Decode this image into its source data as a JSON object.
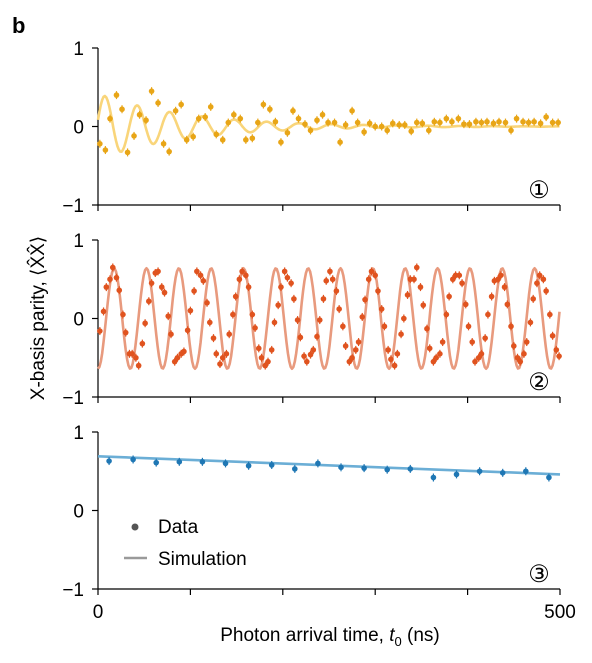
{
  "panel_label": "b",
  "shared_ylabel": "X-basis parity, ⟨X̂X̂⟩",
  "shared_xlabel": "Photon arrival time, t0 (ns)",
  "shared_xlabel_parts": {
    "main": "Photon arrival time, ",
    "var": "t",
    "sub": "0",
    "unit": " (ns)"
  },
  "x_tick_labels": [
    "0",
    "500"
  ],
  "legend": {
    "data_label": "Data",
    "simulation_label": "Simulation",
    "marker_color": "#555555",
    "line_color": "#9a9a9a"
  },
  "chart_data": [
    {
      "type": "line",
      "panel": "1",
      "badge": "①",
      "xlim": [
        0,
        500
      ],
      "ylim": [
        -1,
        1
      ],
      "y_ticks": [
        "1",
        "0",
        "−1"
      ],
      "data_color": "#E8A516",
      "sim_color": "#F9D57A",
      "series": [
        {
          "name": "Data",
          "kind": "points",
          "x": [
            2,
            8,
            13,
            20,
            26,
            32,
            39,
            45,
            52,
            58,
            65,
            71,
            77,
            84,
            90,
            96,
            103,
            109,
            116,
            122,
            128,
            135,
            141,
            147,
            154,
            160,
            167,
            173,
            179,
            186,
            192,
            198,
            205,
            211,
            217,
            224,
            230,
            237,
            243,
            249,
            256,
            262,
            268,
            275,
            281,
            288,
            294,
            300,
            307,
            313,
            319,
            326,
            332,
            339,
            345,
            351,
            358,
            364,
            370,
            377,
            383,
            390,
            396,
            402,
            409,
            415,
            421,
            428,
            434,
            441,
            447,
            453,
            460,
            466,
            472,
            479,
            485,
            492,
            498
          ],
          "y": [
            -0.22,
            -0.3,
            0.1,
            0.4,
            0.22,
            -0.33,
            -0.12,
            0.15,
            0.08,
            0.45,
            0.3,
            -0.22,
            -0.32,
            0.2,
            0.28,
            -0.17,
            -0.13,
            0.1,
            0.12,
            0.25,
            -0.1,
            -0.17,
            0.05,
            0.15,
            0.1,
            -0.17,
            -0.15,
            0.05,
            0.28,
            0.22,
            0.06,
            -0.2,
            -0.08,
            0.2,
            0.1,
            0.03,
            -0.05,
            0.08,
            0.15,
            0.05,
            0.05,
            -0.2,
            0.02,
            0.2,
            0.05,
            -0.07,
            0.04,
            0.0,
            0.0,
            -0.05,
            0.04,
            0.02,
            0.02,
            -0.06,
            0.05,
            0.04,
            -0.05,
            0.06,
            0.05,
            0.1,
            0.06,
            0.1,
            0.03,
            0.03,
            0.06,
            0.05,
            0.06,
            0.04,
            0.06,
            0.05,
            -0.05,
            0.1,
            0.06,
            0.05,
            0.06,
            0.04,
            0.12,
            0.05,
            0.05
          ]
        },
        {
          "name": "Simulation",
          "kind": "line",
          "model": {
            "amplitude": 0.42,
            "decay_ns": 95,
            "period_ns": 35,
            "phase": 0.2
          }
        }
      ]
    },
    {
      "type": "line",
      "panel": "2",
      "badge": "②",
      "xlim": [
        0,
        500
      ],
      "ylim": [
        -1,
        1
      ],
      "y_ticks": [
        "1",
        "0",
        "−1"
      ],
      "data_color": "#E0531F",
      "sim_color": "#E89A7E",
      "series": [
        {
          "name": "Data",
          "kind": "points",
          "x": [
            2,
            6,
            9,
            13,
            16,
            20,
            23,
            27,
            30,
            34,
            37,
            41,
            44,
            48,
            51,
            55,
            58,
            62,
            65,
            69,
            72,
            76,
            79,
            83,
            86,
            90,
            93,
            97,
            100,
            104,
            107,
            111,
            114,
            118,
            121,
            125,
            128,
            132,
            135,
            139,
            142,
            146,
            149,
            153,
            156,
            160,
            163,
            167,
            170,
            174,
            177,
            181,
            184,
            188,
            191,
            195,
            198,
            202,
            205,
            209,
            212,
            216,
            219,
            223,
            226,
            230,
            233,
            237,
            240,
            244,
            247,
            251,
            254,
            258,
            261,
            265,
            268,
            272,
            275,
            279,
            282,
            286,
            289,
            293,
            296,
            300,
            303,
            307,
            310,
            314,
            317,
            321,
            324,
            328,
            331,
            335,
            338,
            342,
            345,
            349,
            352,
            356,
            359,
            363,
            366,
            370,
            373,
            377,
            380,
            384,
            387,
            391,
            394,
            398,
            401,
            405,
            408,
            412,
            415,
            419,
            422,
            426,
            429,
            433,
            436,
            440,
            443,
            447,
            450,
            454,
            457,
            461,
            464,
            468,
            471,
            475,
            478,
            482,
            485,
            489,
            492,
            496,
            499
          ],
          "y": [
            -0.16,
            0.09,
            0.4,
            0.5,
            0.65,
            0.52,
            0.36,
            0.05,
            -0.18,
            -0.45,
            -0.45,
            -0.5,
            -0.6,
            -0.32,
            -0.06,
            0.22,
            0.45,
            0.58,
            0.6,
            0.4,
            0.33,
            0.03,
            -0.2,
            -0.55,
            -0.5,
            -0.45,
            -0.42,
            -0.15,
            0.1,
            0.35,
            0.6,
            0.55,
            0.48,
            0.2,
            -0.05,
            -0.25,
            -0.45,
            -0.58,
            -0.5,
            -0.45,
            -0.2,
            0.05,
            0.28,
            0.5,
            0.6,
            0.55,
            0.4,
            0.05,
            -0.12,
            -0.38,
            -0.5,
            -0.6,
            -0.55,
            -0.4,
            -0.05,
            0.17,
            0.4,
            0.6,
            0.52,
            0.45,
            0.25,
            -0.02,
            -0.24,
            -0.48,
            -0.55,
            -0.46,
            -0.4,
            -0.23,
            -0.02,
            0.25,
            0.48,
            0.6,
            0.5,
            0.35,
            0.12,
            -0.1,
            -0.35,
            -0.55,
            -0.5,
            -0.4,
            -0.3,
            0.02,
            0.24,
            0.5,
            0.6,
            0.55,
            0.35,
            0.12,
            -0.1,
            -0.4,
            -0.52,
            -0.6,
            -0.45,
            -0.2,
            0.0,
            0.3,
            0.5,
            0.5,
            0.65,
            0.4,
            0.17,
            -0.13,
            -0.38,
            -0.55,
            -0.5,
            -0.45,
            -0.3,
            0.05,
            0.28,
            0.5,
            0.55,
            0.55,
            0.45,
            0.18,
            -0.1,
            -0.3,
            -0.55,
            -0.5,
            -0.45,
            -0.25,
            0.05,
            0.28,
            0.48,
            0.5,
            0.55,
            0.4,
            0.18,
            -0.1,
            -0.35,
            -0.5,
            -0.55,
            -0.45,
            -0.3,
            -0.05,
            0.25,
            0.45,
            0.55,
            0.5,
            0.35,
            0.05,
            -0.22,
            -0.4,
            -0.48
          ]
        },
        {
          "name": "Simulation",
          "kind": "line",
          "model": {
            "amplitude": 0.64,
            "decay_ns": 0,
            "period_ns": 35,
            "phase": -1.57
          }
        }
      ]
    },
    {
      "type": "line",
      "panel": "3",
      "badge": "③",
      "xlim": [
        0,
        500
      ],
      "ylim": [
        -1,
        1
      ],
      "y_ticks": [
        "1",
        "0",
        "−1"
      ],
      "data_color": "#1F77B4",
      "sim_color": "#6BAED6",
      "series": [
        {
          "name": "Data",
          "kind": "points",
          "x": [
            12,
            38,
            63,
            88,
            113,
            138,
            163,
            188,
            213,
            238,
            263,
            288,
            313,
            338,
            363,
            388,
            413,
            438,
            463,
            488
          ],
          "y": [
            0.63,
            0.65,
            0.61,
            0.62,
            0.62,
            0.6,
            0.57,
            0.58,
            0.53,
            0.6,
            0.55,
            0.54,
            0.52,
            0.53,
            0.42,
            0.46,
            0.5,
            0.48,
            0.5,
            0.42
          ]
        },
        {
          "name": "Simulation",
          "kind": "line",
          "x": [
            0,
            500
          ],
          "y": [
            0.69,
            0.46
          ]
        }
      ]
    }
  ]
}
